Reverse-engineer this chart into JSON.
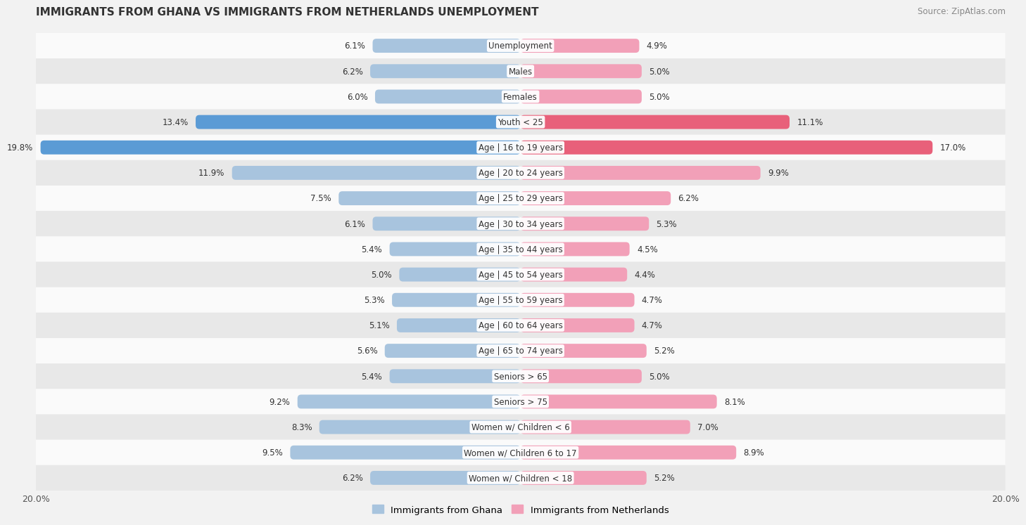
{
  "title": "IMMIGRANTS FROM GHANA VS IMMIGRANTS FROM NETHERLANDS UNEMPLOYMENT",
  "source": "Source: ZipAtlas.com",
  "categories": [
    "Unemployment",
    "Males",
    "Females",
    "Youth < 25",
    "Age | 16 to 19 years",
    "Age | 20 to 24 years",
    "Age | 25 to 29 years",
    "Age | 30 to 34 years",
    "Age | 35 to 44 years",
    "Age | 45 to 54 years",
    "Age | 55 to 59 years",
    "Age | 60 to 64 years",
    "Age | 65 to 74 years",
    "Seniors > 65",
    "Seniors > 75",
    "Women w/ Children < 6",
    "Women w/ Children 6 to 17",
    "Women w/ Children < 18"
  ],
  "ghana_values": [
    6.1,
    6.2,
    6.0,
    13.4,
    19.8,
    11.9,
    7.5,
    6.1,
    5.4,
    5.0,
    5.3,
    5.1,
    5.6,
    5.4,
    9.2,
    8.3,
    9.5,
    6.2
  ],
  "netherlands_values": [
    4.9,
    5.0,
    5.0,
    11.1,
    17.0,
    9.9,
    6.2,
    5.3,
    4.5,
    4.4,
    4.7,
    4.7,
    5.2,
    5.0,
    8.1,
    7.0,
    8.9,
    5.2
  ],
  "ghana_color": "#a8c4de",
  "netherlands_color": "#f2a0b8",
  "ghana_highlight_color": "#5b9bd5",
  "netherlands_highlight_color": "#e8607a",
  "highlight_rows": [
    3,
    4
  ],
  "axis_limit": 20.0,
  "legend_ghana": "Immigrants from Ghana",
  "legend_netherlands": "Immigrants from Netherlands",
  "background_color": "#f2f2f2",
  "row_bg_light": "#fafafa",
  "row_bg_dark": "#e8e8e8"
}
